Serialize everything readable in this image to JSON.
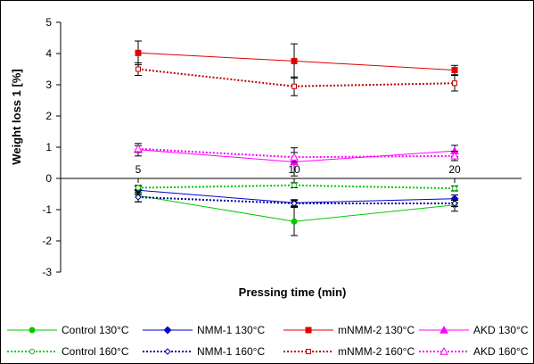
{
  "chart_data": {
    "type": "line",
    "xlabel": "Pressing time (min)",
    "ylabel": "Weight loss 1 [%]",
    "ylim": [
      -3,
      5
    ],
    "yticks": [
      -3,
      -2,
      -1,
      0,
      1,
      2,
      3,
      4,
      5
    ],
    "categories": [
      "5",
      "10",
      "20"
    ],
    "grid": false,
    "legend_position": "bottom",
    "series": [
      {
        "name": "Control 130°C",
        "values": [
          -0.55,
          -1.38,
          -0.85
        ],
        "errors": [
          0.2,
          0.45,
          0.2
        ],
        "color": "#00c800",
        "dash": "solid",
        "marker": "circle"
      },
      {
        "name": "NMM-1 130°C",
        "values": [
          -0.38,
          -0.78,
          -0.65
        ],
        "errors": [
          0.12,
          0.1,
          0.12
        ],
        "color": "#0000d0",
        "dash": "solid",
        "marker": "diamond"
      },
      {
        "name": "mNMM-2 130°C",
        "values": [
          4.02,
          3.76,
          3.47
        ],
        "errors": [
          0.38,
          0.55,
          0.15
        ],
        "color": "#e00000",
        "dash": "solid",
        "marker": "square"
      },
      {
        "name": "AKD 130°C",
        "values": [
          0.92,
          0.53,
          0.88
        ],
        "errors": [
          0.2,
          0.45,
          0.18
        ],
        "color": "#ff00ff",
        "dash": "solid",
        "marker": "triangle"
      },
      {
        "name": "Control 160°C",
        "values": [
          -0.3,
          -0.22,
          -0.32
        ],
        "errors": [
          0.08,
          0.08,
          0.08
        ],
        "color": "#00c800",
        "dash": "dotted",
        "marker": "circle-open"
      },
      {
        "name": "NMM-1 160°C",
        "values": [
          -0.6,
          -0.8,
          -0.8
        ],
        "errors": [
          0.15,
          0.1,
          0.1
        ],
        "color": "#0000a0",
        "dash": "dotted",
        "marker": "diamond-open"
      },
      {
        "name": "mNMM-2 160°C",
        "values": [
          3.5,
          2.95,
          3.05
        ],
        "errors": [
          0.2,
          0.3,
          0.25
        ],
        "color": "#c00000",
        "dash": "dotted",
        "marker": "square-open"
      },
      {
        "name": "AKD 160°C",
        "values": [
          0.95,
          0.68,
          0.72
        ],
        "errors": [
          0.1,
          0.15,
          0.15
        ],
        "color": "#ff00ff",
        "dash": "dotted",
        "marker": "triangle-open"
      }
    ]
  }
}
